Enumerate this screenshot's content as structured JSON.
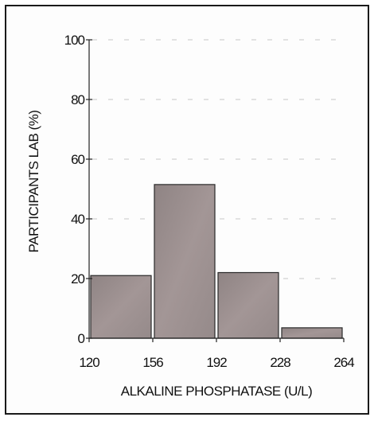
{
  "chart_data": {
    "type": "bar",
    "xlabel": "ALKALINE PHOSPHATASE (U/L)",
    "ylabel": "PARTICIPANTS LAB (%)",
    "xlim": [
      120,
      264
    ],
    "ylim": [
      0,
      100
    ],
    "x_ticks": [
      120,
      156,
      192,
      228,
      264
    ],
    "y_ticks": [
      0,
      20,
      40,
      60,
      80,
      100
    ],
    "bins": [
      {
        "from": 120,
        "to": 156,
        "value": 21
      },
      {
        "from": 156,
        "to": 192,
        "value": 51.5
      },
      {
        "from": 192,
        "to": 228,
        "value": 22
      },
      {
        "from": 228,
        "to": 264,
        "value": 3.5
      }
    ],
    "grid": "horizontal-dashed",
    "colors": {
      "bar": "#9c8f8f",
      "bar_stroke": "#2a2a2a",
      "grid": "#c8c8c8",
      "axis": "#222222"
    }
  }
}
